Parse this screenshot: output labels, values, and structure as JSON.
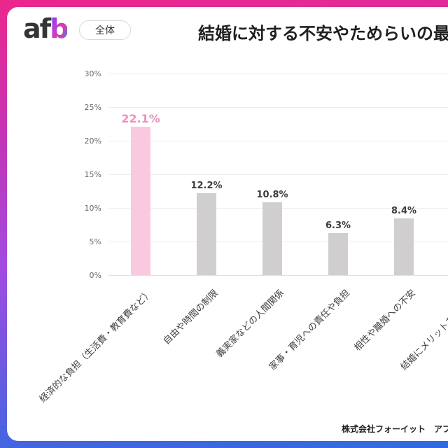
{
  "frame": {
    "gradient_top": "#EC268C",
    "gradient_mid": "#A14BE0",
    "gradient_bottom": "#2F6BE0"
  },
  "header": {
    "logo_af": "af",
    "logo_b": "b",
    "badge_label": "全体",
    "title": "結婚に対する不安やためらいの最大の"
  },
  "footer": {
    "credit": "株式会社フォーイット　アフィ"
  },
  "chart_data": {
    "type": "bar",
    "title": "結婚に対する不安やためらいの最大の",
    "categories": [
      "経済的な負担（生活費・教育費など）",
      "自由や時間の制限",
      "義実家などの人間関係",
      "家事・育児への責任や負担",
      "相性や離婚への不安",
      "結婚にメリットを感じない"
    ],
    "values": [
      22.1,
      12.2,
      10.8,
      6.3,
      8.4,
      null
    ],
    "value_labels": [
      "22.1%",
      "12.2%",
      "10.8%",
      "6.3%",
      "8.4%",
      ""
    ],
    "ylim": [
      0,
      30
    ],
    "yticks": [
      "0%",
      "5%",
      "10%",
      "15%",
      "20%",
      "25%",
      "30%"
    ],
    "grid": true,
    "legend": false,
    "highlight_index": 0,
    "colors": {
      "bar": "#D1CECF",
      "highlight_bar": "#F9C9E0",
      "value_label": "#3C3C3C",
      "highlight_value_label": "#EE8FC0"
    }
  }
}
